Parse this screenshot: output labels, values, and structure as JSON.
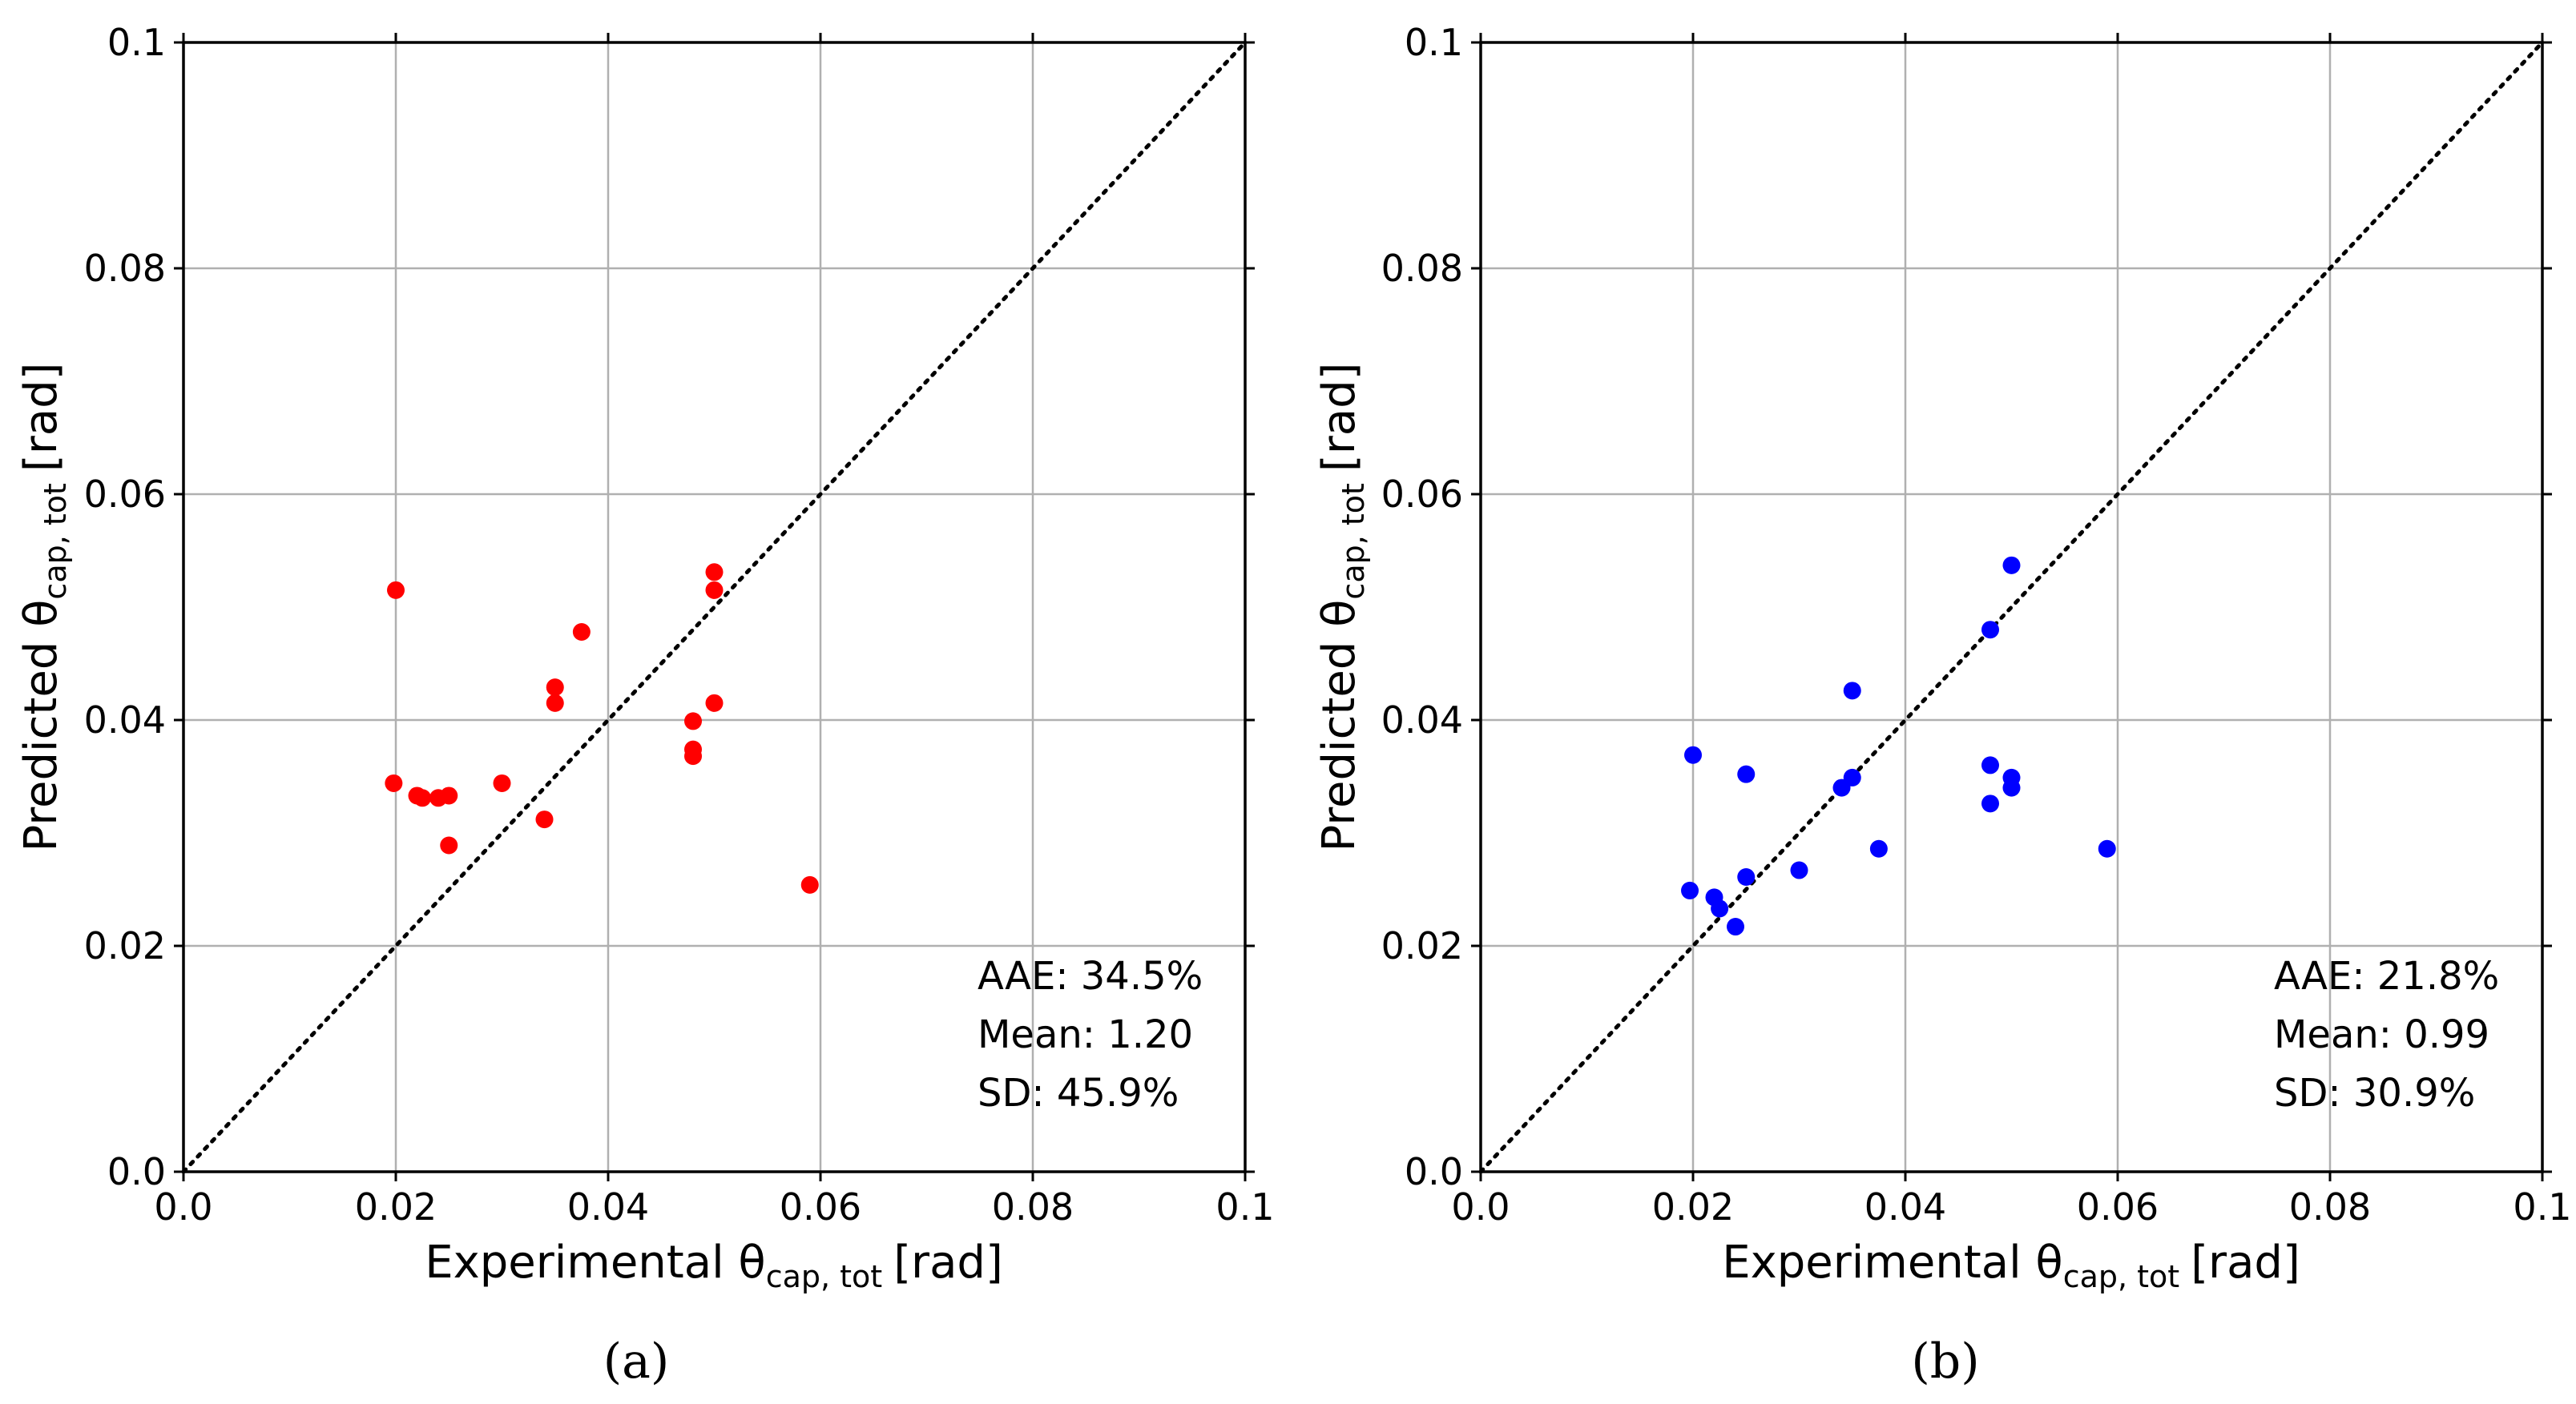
{
  "chart_data": [
    {
      "panel_label": "(a)",
      "type": "scatter",
      "marker_color": "#ff0000",
      "xlabel_main": "Experimental θ",
      "xlabel_sub": "cap, tot",
      "xlabel_unit": "[rad]",
      "ylabel_main": "Predicted θ",
      "ylabel_sub": "cap, tot",
      "ylabel_unit": "[rad]",
      "xlim": [
        0,
        0.1
      ],
      "ylim": [
        0,
        0.1
      ],
      "xticks": [
        0.0,
        0.02,
        0.04,
        0.06,
        0.08,
        0.1
      ],
      "yticks": [
        0.0,
        0.02,
        0.04,
        0.06,
        0.08,
        0.1
      ],
      "xtick_labels": [
        "0.0",
        "0.02",
        "0.04",
        "0.06",
        "0.08",
        "0.1"
      ],
      "ytick_labels": [
        "0.0",
        "0.02",
        "0.04",
        "0.06",
        "0.08",
        "0.1"
      ],
      "grid": true,
      "reference_line": "y = x (dotted)",
      "stats": [
        "AAE: 34.5%",
        "Mean: 1.20",
        "SD: 45.9%"
      ],
      "points": [
        {
          "x": 0.0198,
          "y": 0.0344
        },
        {
          "x": 0.02,
          "y": 0.0515
        },
        {
          "x": 0.022,
          "y": 0.0333
        },
        {
          "x": 0.0225,
          "y": 0.0331
        },
        {
          "x": 0.024,
          "y": 0.0331
        },
        {
          "x": 0.025,
          "y": 0.0333
        },
        {
          "x": 0.025,
          "y": 0.0289
        },
        {
          "x": 0.03,
          "y": 0.0344
        },
        {
          "x": 0.034,
          "y": 0.0312
        },
        {
          "x": 0.035,
          "y": 0.0429
        },
        {
          "x": 0.035,
          "y": 0.0415
        },
        {
          "x": 0.0375,
          "y": 0.0478
        },
        {
          "x": 0.048,
          "y": 0.0399
        },
        {
          "x": 0.048,
          "y": 0.0374
        },
        {
          "x": 0.048,
          "y": 0.0368
        },
        {
          "x": 0.05,
          "y": 0.0531
        },
        {
          "x": 0.05,
          "y": 0.0515
        },
        {
          "x": 0.05,
          "y": 0.0415
        },
        {
          "x": 0.059,
          "y": 0.0254
        }
      ]
    },
    {
      "panel_label": "(b)",
      "type": "scatter",
      "marker_color": "#0000ff",
      "xlabel_main": "Experimental θ",
      "xlabel_sub": "cap, tot",
      "xlabel_unit": "[rad]",
      "ylabel_main": "Predicted θ",
      "ylabel_sub": "cap, tot",
      "ylabel_unit": "[rad]",
      "xlim": [
        0,
        0.1
      ],
      "ylim": [
        0,
        0.1
      ],
      "xticks": [
        0.0,
        0.02,
        0.04,
        0.06,
        0.08,
        0.1
      ],
      "yticks": [
        0.0,
        0.02,
        0.04,
        0.06,
        0.08,
        0.1
      ],
      "xtick_labels": [
        "0.0",
        "0.02",
        "0.04",
        "0.06",
        "0.08",
        "0.1"
      ],
      "ytick_labels": [
        "0.0",
        "0.02",
        "0.04",
        "0.06",
        "0.08",
        "0.1"
      ],
      "grid": true,
      "reference_line": "y = x (dotted)",
      "stats": [
        "AAE: 21.8%",
        "Mean: 0.99",
        "SD: 30.9%"
      ],
      "points": [
        {
          "x": 0.0197,
          "y": 0.0249
        },
        {
          "x": 0.02,
          "y": 0.0369
        },
        {
          "x": 0.022,
          "y": 0.0243
        },
        {
          "x": 0.0225,
          "y": 0.0233
        },
        {
          "x": 0.024,
          "y": 0.0217
        },
        {
          "x": 0.025,
          "y": 0.0352
        },
        {
          "x": 0.025,
          "y": 0.0261
        },
        {
          "x": 0.03,
          "y": 0.0267
        },
        {
          "x": 0.034,
          "y": 0.034
        },
        {
          "x": 0.035,
          "y": 0.0426
        },
        {
          "x": 0.035,
          "y": 0.0349
        },
        {
          "x": 0.0375,
          "y": 0.0286
        },
        {
          "x": 0.048,
          "y": 0.048
        },
        {
          "x": 0.048,
          "y": 0.036
        },
        {
          "x": 0.048,
          "y": 0.0326
        },
        {
          "x": 0.05,
          "y": 0.0537
        },
        {
          "x": 0.05,
          "y": 0.0349
        },
        {
          "x": 0.05,
          "y": 0.034
        },
        {
          "x": 0.059,
          "y": 0.0286
        }
      ]
    }
  ]
}
